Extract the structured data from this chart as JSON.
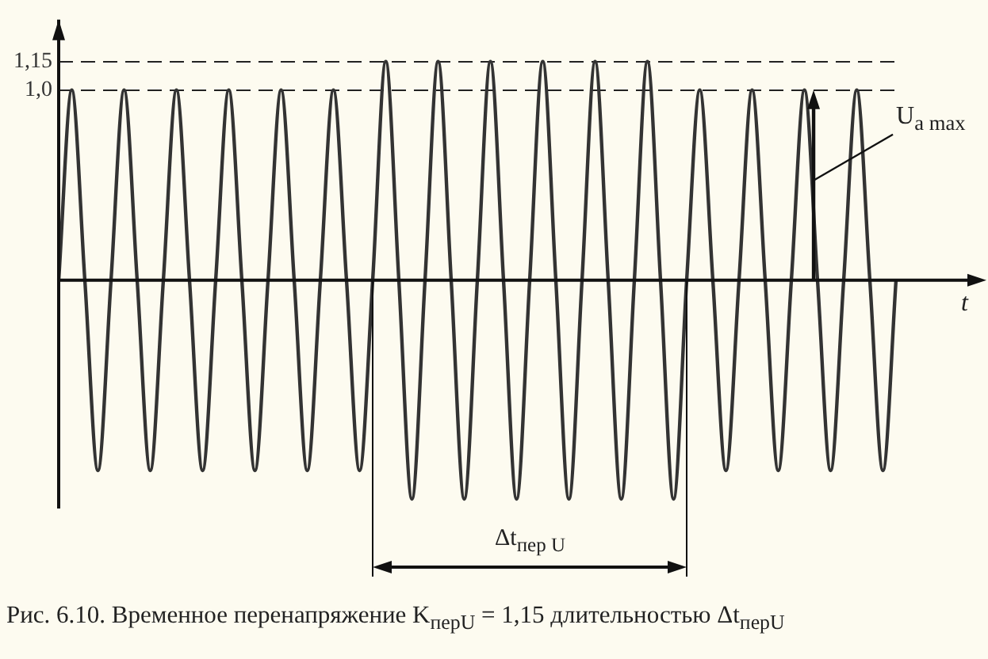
{
  "chart_data": {
    "type": "line",
    "xlabel": "t",
    "categories": [
      null,
      null,
      null,
      null,
      null,
      null,
      null,
      null,
      null,
      null,
      null,
      null,
      null,
      null,
      null,
      null,
      null,
      null,
      null,
      null,
      null,
      null,
      null,
      null,
      null,
      null,
      null,
      null,
      null,
      null,
      null,
      null,
      null,
      null,
      null,
      null,
      null,
      null,
      null,
      null,
      null,
      null,
      null,
      null,
      null,
      null,
      null,
      null,
      null,
      null,
      null,
      null,
      null,
      null,
      null,
      null,
      null,
      null,
      null,
      null,
      null,
      null,
      null,
      null,
      null
    ],
    "values": [
      0,
      1,
      0,
      -1,
      0,
      1,
      0,
      -1,
      0,
      1,
      0,
      -1,
      0,
      1,
      0,
      -1,
      0,
      1,
      0,
      -1,
      0,
      1,
      0,
      -1,
      0,
      1.15,
      0,
      -1.15,
      0,
      1.15,
      0,
      -1.15,
      0,
      1.15,
      0,
      -1.15,
      0,
      1.15,
      0,
      -1.15,
      0,
      1.15,
      0,
      -1.15,
      0,
      1.15,
      0,
      -1.15,
      0,
      1,
      0,
      -1,
      0,
      1,
      0,
      -1,
      0,
      1,
      0,
      -1,
      0,
      1,
      0,
      -1,
      0
    ],
    "color": "#333333",
    "marker": "none",
    "line_style": "solid",
    "ylim": [
      -1.2,
      1.37
    ],
    "yticks": [
      {
        "value": 1,
        "label": "1,0"
      },
      {
        "value": 1.15,
        "label": "1,15"
      }
    ],
    "grid": "y",
    "tick_labels": "y",
    "annotations": [
      "U$_{a max}$",
      "Δt$_{пер U}$",
      "Рис. 6.10. Временное перенапряжение K$_{перU}$ = 1,15 длительностью Δt$_{перU}$"
    ]
  }
}
